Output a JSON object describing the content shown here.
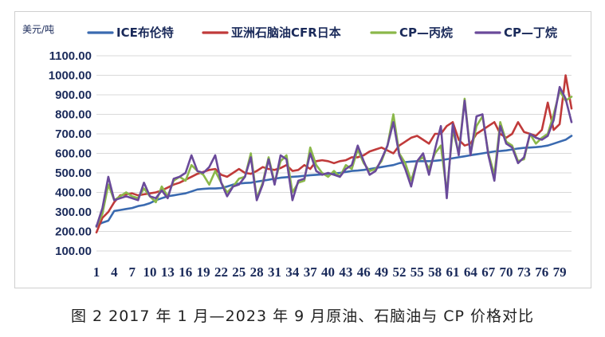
{
  "caption": "图 2 2017 年 1 月—2023 年 9 月原油、石脑油与 CP 价格对比",
  "chart_data": {
    "type": "line",
    "ylabel": "美元/吨",
    "ylim": [
      100,
      1100
    ],
    "yticks": [
      "100.00",
      "200.00",
      "300.00",
      "400.00",
      "500.00",
      "600.00",
      "700.00",
      "800.00",
      "900.00",
      "1000.00",
      "1100.00"
    ],
    "xtick_labels": [
      "1",
      "4",
      "7",
      "10",
      "13",
      "16",
      "19",
      "22",
      "25",
      "28",
      "31",
      "34",
      "37",
      "40",
      "43",
      "46",
      "49",
      "52",
      "55",
      "58",
      "61",
      "64",
      "67",
      "70",
      "73",
      "76",
      "79"
    ],
    "x": [
      1,
      2,
      3,
      4,
      5,
      6,
      7,
      8,
      9,
      10,
      11,
      12,
      13,
      14,
      15,
      16,
      17,
      18,
      19,
      20,
      21,
      22,
      23,
      24,
      25,
      26,
      27,
      28,
      29,
      30,
      31,
      32,
      33,
      34,
      35,
      36,
      37,
      38,
      39,
      40,
      41,
      42,
      43,
      44,
      45,
      46,
      47,
      48,
      49,
      50,
      51,
      52,
      53,
      54,
      55,
      56,
      57,
      58,
      59,
      60,
      61,
      62,
      63,
      64,
      65,
      66,
      67,
      68,
      69,
      70,
      71,
      72,
      73,
      74,
      75,
      76,
      77,
      78,
      79,
      80,
      81
    ],
    "grid": true,
    "legend": "top",
    "series": [
      {
        "name": "ICE布伦特",
        "color": "#3a6ab0",
        "values": [
          230,
          245,
          255,
          305,
          310,
          315,
          320,
          330,
          335,
          345,
          360,
          370,
          380,
          385,
          390,
          395,
          405,
          415,
          418,
          420,
          420,
          422,
          430,
          440,
          445,
          448,
          450,
          455,
          460,
          465,
          470,
          475,
          478,
          480,
          482,
          485,
          488,
          490,
          492,
          495,
          497,
          500,
          505,
          510,
          512,
          515,
          520,
          525,
          530,
          535,
          540,
          550,
          555,
          558,
          560,
          560,
          560,
          562,
          565,
          570,
          575,
          580,
          585,
          590,
          595,
          600,
          605,
          610,
          612,
          615,
          620,
          625,
          628,
          630,
          632,
          635,
          640,
          650,
          660,
          670,
          690
        ]
      },
      {
        "name": "亚洲石脑油CFR日本",
        "color": "#c03a3a",
        "values": [
          195,
          270,
          300,
          350,
          385,
          390,
          395,
          385,
          390,
          395,
          400,
          410,
          425,
          440,
          450,
          465,
          480,
          495,
          505,
          515,
          520,
          490,
          480,
          500,
          520,
          500,
          495,
          510,
          530,
          520,
          515,
          525,
          540,
          510,
          515,
          540,
          520,
          560,
          565,
          560,
          550,
          560,
          565,
          580,
          580,
          590,
          610,
          620,
          630,
          615,
          600,
          640,
          660,
          680,
          690,
          670,
          650,
          700,
          700,
          740,
          760,
          670,
          640,
          650,
          700,
          720,
          740,
          760,
          700,
          680,
          700,
          760,
          710,
          700,
          690,
          720,
          860,
          720,
          750,
          1000,
          830
        ]
      },
      {
        "name": "CP—丙烷",
        "color": "#8bb84a",
        "values": [
          225,
          290,
          440,
          360,
          380,
          400,
          380,
          370,
          420,
          380,
          350,
          430,
          380,
          460,
          480,
          460,
          540,
          510,
          490,
          440,
          510,
          450,
          400,
          430,
          470,
          480,
          600,
          370,
          450,
          580,
          450,
          560,
          590,
          400,
          450,
          460,
          630,
          540,
          500,
          480,
          510,
          480,
          540,
          520,
          620,
          550,
          510,
          520,
          560,
          640,
          800,
          600,
          550,
          460,
          560,
          580,
          520,
          600,
          640,
          400,
          720,
          600,
          880,
          600,
          740,
          790,
          600,
          490,
          760,
          660,
          640,
          560,
          570,
          700,
          650,
          680,
          700,
          800,
          920,
          870,
          890
        ]
      },
      {
        "name": "CP—丁烷",
        "color": "#6a4a9a",
        "values": [
          225,
          320,
          480,
          360,
          370,
          380,
          370,
          360,
          450,
          380,
          370,
          410,
          370,
          470,
          480,
          500,
          590,
          510,
          500,
          530,
          590,
          450,
          380,
          430,
          440,
          480,
          580,
          360,
          440,
          570,
          440,
          590,
          570,
          360,
          460,
          470,
          600,
          510,
          490,
          500,
          490,
          480,
          520,
          540,
          640,
          560,
          490,
          510,
          570,
          640,
          760,
          590,
          520,
          430,
          560,
          600,
          490,
          620,
          740,
          370,
          750,
          590,
          870,
          590,
          790,
          800,
          590,
          460,
          740,
          650,
          630,
          550,
          580,
          700,
          680,
          670,
          690,
          770,
          940,
          880,
          760
        ]
      }
    ]
  }
}
